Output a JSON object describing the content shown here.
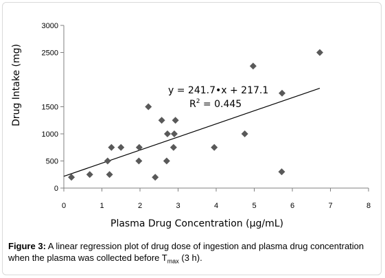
{
  "chart_data": {
    "type": "scatter",
    "title": "",
    "xlabel": "Plasma  Drug Concentration (µg/mL)",
    "ylabel": "Drug Intake (mg)",
    "xlim": [
      0,
      8
    ],
    "ylim": [
      0,
      3000
    ],
    "x_ticks": [
      "0",
      "1",
      "2",
      "3",
      "4",
      "5",
      "6",
      "7",
      "8"
    ],
    "y_ticks": [
      {
        "label": "0",
        "value": 0
      },
      {
        "label": "500",
        "value": 500
      },
      {
        "label": "1000",
        "value": 1000
      },
      {
        "label": "1500",
        "value": 1500
      },
      {
        "label": "2500",
        "value": 2500
      },
      {
        "label": "3000",
        "value": 3000
      }
    ],
    "marker": "diamond",
    "marker_color": "#595959",
    "series": [
      {
        "points": [
          [
            0.2,
            200
          ],
          [
            0.68,
            250
          ],
          [
            1.15,
            500
          ],
          [
            1.2,
            250
          ],
          [
            1.25,
            750
          ],
          [
            1.5,
            750
          ],
          [
            1.97,
            500
          ],
          [
            1.98,
            750
          ],
          [
            2.22,
            1500
          ],
          [
            2.4,
            200
          ],
          [
            2.57,
            1250
          ],
          [
            2.7,
            500
          ],
          [
            2.72,
            1000
          ],
          [
            2.88,
            750
          ],
          [
            2.9,
            1000
          ],
          [
            2.93,
            1250
          ],
          [
            3.95,
            750
          ],
          [
            4.75,
            1000
          ],
          [
            4.97,
            2250
          ],
          [
            5.72,
            300
          ],
          [
            5.73,
            1750
          ],
          [
            6.72,
            2500
          ]
        ]
      }
    ],
    "trendline": {
      "slope": 241.7,
      "intercept": 217.1,
      "x_range": [
        0,
        6.72
      ],
      "equation": "y = 241.7•x + 217.1",
      "r2_label": "R",
      "r2_sup": "2",
      "r2_value": " = 0.445"
    }
  },
  "caption": {
    "label": "Figure 3:",
    "text": " A linear regression plot of drug dose of ingestion and plasma drug concentration when the plasma was collected before T",
    "subscript": "max",
    "suffix": " (3 h)."
  }
}
